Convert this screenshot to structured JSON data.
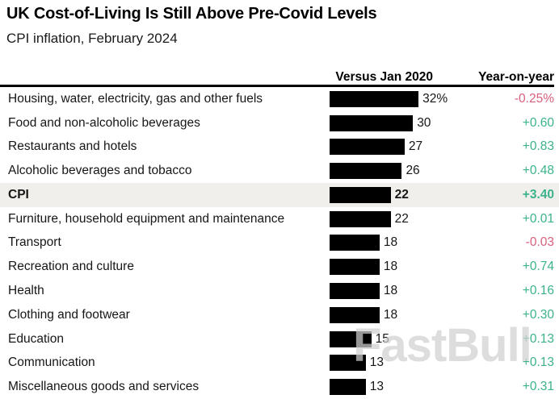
{
  "page": {
    "background": "#ffffff"
  },
  "header": {
    "title": "UK Cost-of-Living Is Still Above Pre-Covid Levels",
    "subtitle": "CPI inflation, February 2024"
  },
  "columns": {
    "bar_column": "Versus Jan 2020",
    "yoy_column": "Year-on-year"
  },
  "colors": {
    "bar": "#000000",
    "positive": "#3cb28c",
    "negative": "#d8607c",
    "highlight_row_bg": "#f0efeb",
    "text": "#161616"
  },
  "watermark": {
    "text": "FastBull"
  },
  "chart_data": {
    "type": "bar",
    "title": "UK Cost-of-Living Is Still Above Pre-Covid Levels",
    "subtitle": "CPI inflation, February 2024",
    "xlabel": "Versus Jan 2020",
    "ylabel": "",
    "unit": "%",
    "xlim": [
      0,
      32
    ],
    "legend": [
      "Versus Jan 2020 (bar)",
      "Year-on-year (value column)"
    ],
    "rows": [
      {
        "category": "Housing, water, electricity, gas and other fuels",
        "vs_jan_2020": 32,
        "bar_label": "32%",
        "yoy": -0.25,
        "yoy_label": "-0.25%",
        "yoy_sign": "negative",
        "highlight": false
      },
      {
        "category": "Food and non-alcoholic beverages",
        "vs_jan_2020": 30,
        "bar_label": "30",
        "yoy": 0.6,
        "yoy_label": "+0.60",
        "yoy_sign": "positive",
        "highlight": false
      },
      {
        "category": "Restaurants and hotels",
        "vs_jan_2020": 27,
        "bar_label": "27",
        "yoy": 0.83,
        "yoy_label": "+0.83",
        "yoy_sign": "positive",
        "highlight": false
      },
      {
        "category": "Alcoholic beverages and tobacco",
        "vs_jan_2020": 26,
        "bar_label": "26",
        "yoy": 0.48,
        "yoy_label": "+0.48",
        "yoy_sign": "positive",
        "highlight": false
      },
      {
        "category": "CPI",
        "vs_jan_2020": 22,
        "bar_label": "22",
        "yoy": 3.4,
        "yoy_label": "+3.40",
        "yoy_sign": "positive",
        "highlight": true
      },
      {
        "category": "Furniture, household equipment and maintenance",
        "vs_jan_2020": 22,
        "bar_label": "22",
        "yoy": 0.01,
        "yoy_label": "+0.01",
        "yoy_sign": "positive",
        "highlight": false
      },
      {
        "category": "Transport",
        "vs_jan_2020": 18,
        "bar_label": "18",
        "yoy": -0.03,
        "yoy_label": "-0.03",
        "yoy_sign": "negative",
        "highlight": false
      },
      {
        "category": "Recreation and culture",
        "vs_jan_2020": 18,
        "bar_label": "18",
        "yoy": 0.74,
        "yoy_label": "+0.74",
        "yoy_sign": "positive",
        "highlight": false
      },
      {
        "category": "Health",
        "vs_jan_2020": 18,
        "bar_label": "18",
        "yoy": 0.16,
        "yoy_label": "+0.16",
        "yoy_sign": "positive",
        "highlight": false
      },
      {
        "category": "Clothing and footwear",
        "vs_jan_2020": 18,
        "bar_label": "18",
        "yoy": 0.3,
        "yoy_label": "+0.30",
        "yoy_sign": "positive",
        "highlight": false
      },
      {
        "category": "Education",
        "vs_jan_2020": 15,
        "bar_label": "15",
        "yoy": 0.13,
        "yoy_label": "+0.13",
        "yoy_sign": "positive",
        "highlight": false
      },
      {
        "category": "Communication",
        "vs_jan_2020": 13,
        "bar_label": "13",
        "yoy": 0.13,
        "yoy_label": "+0.13",
        "yoy_sign": "positive",
        "highlight": false
      },
      {
        "category": "Miscellaneous goods and services",
        "vs_jan_2020": 13,
        "bar_label": "13",
        "yoy": 0.31,
        "yoy_label": "+0.31",
        "yoy_sign": "positive",
        "highlight": false
      }
    ]
  }
}
